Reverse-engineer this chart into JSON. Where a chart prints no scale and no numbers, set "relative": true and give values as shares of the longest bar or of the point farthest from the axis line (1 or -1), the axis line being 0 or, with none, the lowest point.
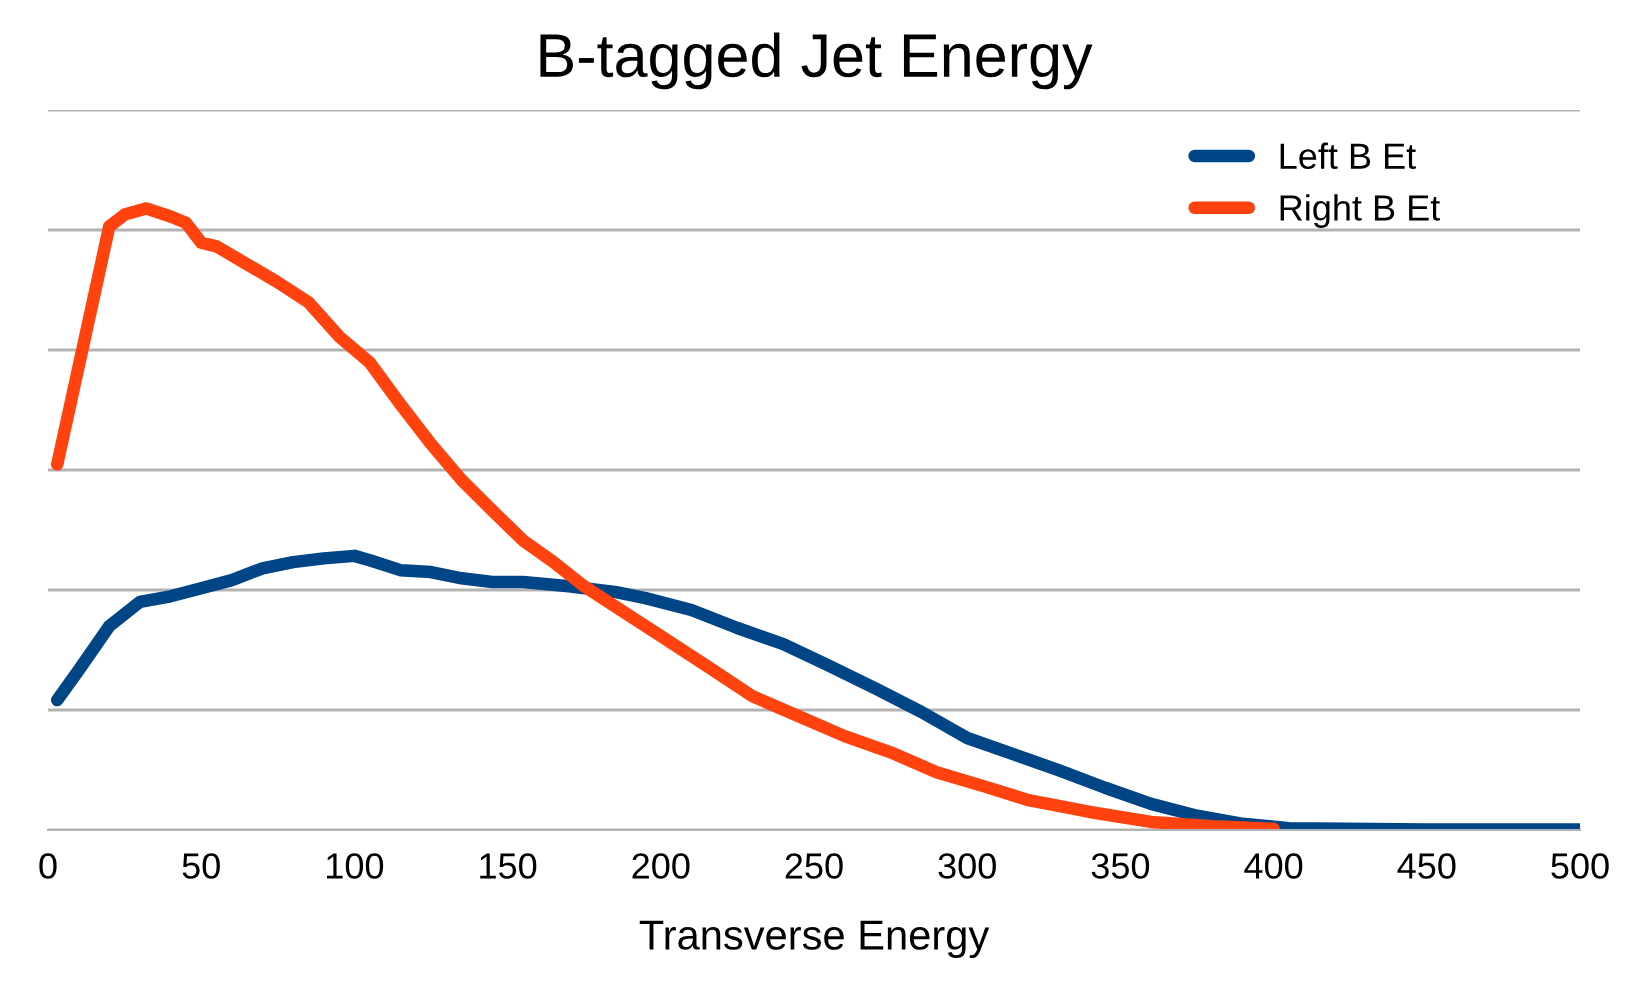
{
  "chart_data": {
    "type": "line",
    "title": "B-tagged Jet Energy",
    "xlabel": "Transverse Energy",
    "relative": true,
    "xlim": [
      0,
      500
    ],
    "xticks": [
      0,
      50,
      100,
      150,
      200,
      250,
      300,
      350,
      400,
      450,
      500
    ],
    "grid": "y",
    "legend": "top right",
    "tick_labels": "x",
    "marker": "none",
    "line_style": "solid",
    "series": [
      {
        "name": "Left B Et",
        "color": "#004586",
        "x": [
          3,
          10,
          20,
          30,
          40,
          50,
          60,
          70,
          80,
          90,
          100,
          105,
          115,
          125,
          135,
          145,
          155,
          170,
          185,
          195,
          210,
          225,
          240,
          255,
          270,
          285,
          300,
          315,
          330,
          345,
          360,
          375,
          390,
          405,
          450,
          500
        ],
        "values": [
          0.209,
          0.257,
          0.328,
          0.367,
          0.376,
          0.389,
          0.402,
          0.421,
          0.431,
          0.437,
          0.441,
          0.434,
          0.418,
          0.415,
          0.405,
          0.399,
          0.399,
          0.392,
          0.383,
          0.373,
          0.354,
          0.325,
          0.299,
          0.264,
          0.228,
          0.19,
          0.148,
          0.122,
          0.096,
          0.068,
          0.042,
          0.023,
          0.01,
          0.003,
          0.001,
          0.001
        ]
      },
      {
        "name": "Right B Et",
        "color": "#ff420e",
        "x": [
          3,
          20,
          25,
          32,
          40,
          45,
          50,
          55,
          65,
          75,
          85,
          95,
          105,
          115,
          125,
          135,
          145,
          155,
          165,
          175,
          185,
          200,
          215,
          230,
          245,
          260,
          275,
          290,
          305,
          320,
          340,
          360,
          380,
          400
        ],
        "values": [
          0.588,
          0.971,
          0.99,
          1.0,
          0.987,
          0.977,
          0.945,
          0.939,
          0.91,
          0.881,
          0.849,
          0.794,
          0.752,
          0.685,
          0.621,
          0.563,
          0.514,
          0.466,
          0.431,
          0.392,
          0.36,
          0.312,
          0.264,
          0.215,
          0.183,
          0.151,
          0.125,
          0.093,
          0.071,
          0.048,
          0.029,
          0.013,
          0.006,
          0.002
        ]
      }
    ]
  }
}
